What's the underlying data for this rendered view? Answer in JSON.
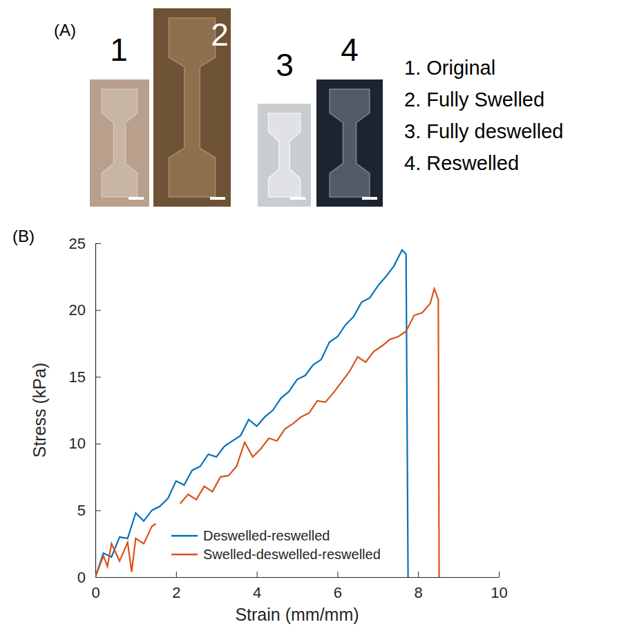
{
  "panel_a": {
    "label": "(A)",
    "photos": [
      {
        "number": "1",
        "caption": "1. Original"
      },
      {
        "number": "2",
        "caption": "2. Fully Swelled"
      },
      {
        "number": "3",
        "caption": "3. Fully deswelled"
      },
      {
        "number": "4",
        "caption": "4. Reswelled"
      }
    ]
  },
  "chart_data": {
    "type": "line",
    "panel_label": "(B)",
    "x_label": "Strain (mm/mm)",
    "y_label": "Stress (kPa)",
    "xlim": [
      0,
      10
    ],
    "xticks": [
      0,
      2,
      4,
      6,
      8,
      10
    ],
    "ylim": [
      0,
      25
    ],
    "yticks": [
      0,
      5,
      10,
      15,
      20,
      25
    ],
    "grid": false,
    "legend": "lower center",
    "series": [
      {
        "name": "Deswelled-reswelled",
        "color": "#0072bd",
        "x": [
          0,
          0.2,
          0.4,
          0.6,
          0.8,
          1.0,
          1.2,
          1.4,
          1.6,
          1.8,
          2.0,
          2.2,
          2.4,
          2.6,
          2.8,
          3.0,
          3.2,
          3.4,
          3.6,
          3.8,
          4.0,
          4.2,
          4.4,
          4.6,
          4.8,
          5.0,
          5.2,
          5.4,
          5.6,
          5.8,
          6.0,
          6.2,
          6.4,
          6.6,
          6.8,
          7.0,
          7.2,
          7.4,
          7.6,
          7.7,
          7.75
        ],
        "values": [
          0,
          1.8,
          1.5,
          3.0,
          2.9,
          4.8,
          4.2,
          5.0,
          5.3,
          5.9,
          7.2,
          6.9,
          8.0,
          8.3,
          9.2,
          9.0,
          9.8,
          10.2,
          10.6,
          11.8,
          11.3,
          12.0,
          12.5,
          13.4,
          13.9,
          14.8,
          15.1,
          15.9,
          16.3,
          17.6,
          18.0,
          18.9,
          19.5,
          20.6,
          20.9,
          21.8,
          22.5,
          23.3,
          24.5,
          24.2,
          0
        ]
      },
      {
        "name": "Swelled-deswelled-reswelled",
        "color": "#d95319",
        "x": [
          0,
          0.2,
          0.3,
          0.4,
          0.6,
          0.8,
          0.9,
          1.0,
          1.2,
          1.4,
          1.5,
          1.6,
          2.1,
          2.3,
          2.5,
          2.7,
          2.9,
          3.1,
          3.3,
          3.5,
          3.7,
          3.9,
          4.1,
          4.3,
          4.5,
          4.7,
          4.9,
          5.1,
          5.3,
          5.5,
          5.7,
          5.9,
          6.1,
          6.3,
          6.5,
          6.7,
          6.9,
          7.1,
          7.3,
          7.5,
          7.7,
          7.9,
          8.1,
          8.3,
          8.4,
          8.5,
          8.52
        ],
        "values": [
          0,
          1.6,
          0.8,
          2.5,
          1.2,
          2.6,
          0.4,
          2.9,
          2.5,
          3.8,
          4.0,
          null,
          5.5,
          6.2,
          5.8,
          6.8,
          6.4,
          7.5,
          7.6,
          8.3,
          10.1,
          9.0,
          9.6,
          10.4,
          10.2,
          11.1,
          11.5,
          12.0,
          12.3,
          13.2,
          13.1,
          13.8,
          14.6,
          15.4,
          16.5,
          16.1,
          16.9,
          17.3,
          17.8,
          18.0,
          18.4,
          19.6,
          19.8,
          20.5,
          21.6,
          20.8,
          0
        ]
      }
    ]
  }
}
